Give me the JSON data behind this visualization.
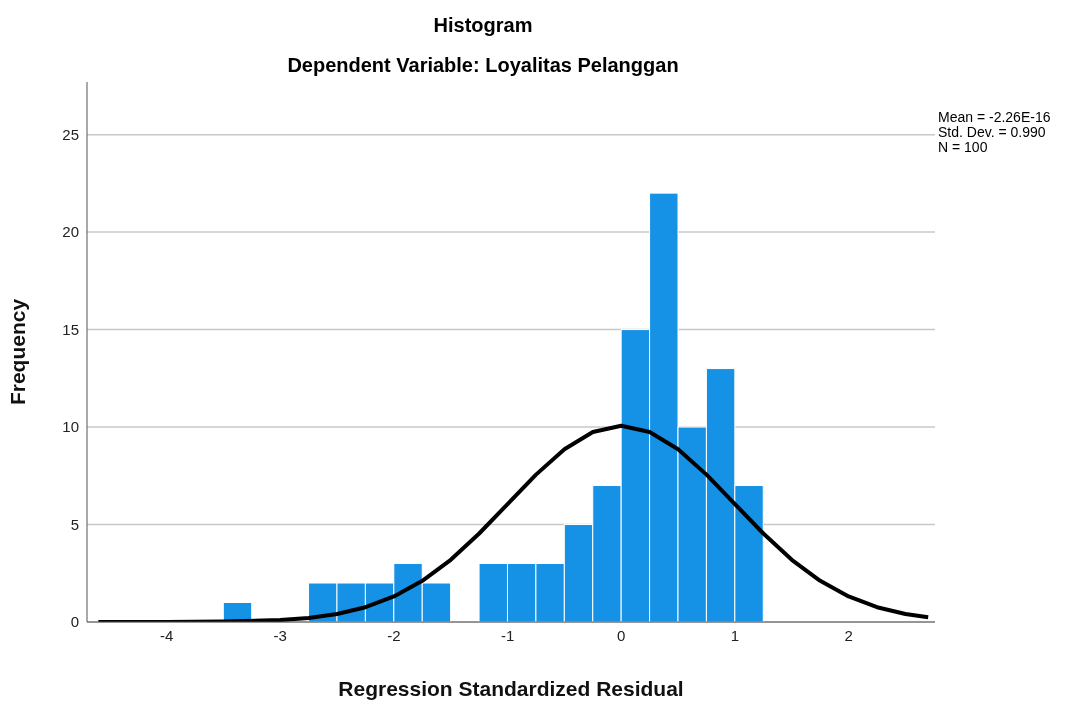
{
  "chart_data": {
    "type": "histogram",
    "title": "Histogram",
    "subtitle": "Dependent Variable: Loyalitas Pelanggan",
    "xlabel": "Regression Standardized Residual",
    "ylabel": "Frequency",
    "bins": [
      -3.5,
      -3.25,
      -3.0,
      -2.75,
      -2.5,
      -2.25,
      -2.0,
      -1.75,
      -1.5,
      -1.25,
      -1.0,
      -0.75,
      -0.5,
      -0.25,
      0.0,
      0.25,
      0.5,
      0.75,
      1.0,
      1.25
    ],
    "values": [
      1,
      0,
      0,
      2,
      2,
      2,
      3,
      2,
      0,
      3,
      3,
      3,
      5,
      7,
      15,
      22,
      10,
      13,
      7
    ],
    "color": "#1592e6",
    "series": [
      {
        "type": "line",
        "color": "#000000",
        "x": [
          -4.6,
          -4,
          -3.5,
          -3,
          -2.75,
          -2.5,
          -2.25,
          -2,
          -1.75,
          -1.5,
          -1.25,
          -1,
          -0.75,
          -0.5,
          -0.25,
          0,
          0.25,
          0.5,
          0.75,
          1,
          1.25,
          1.5,
          1.75,
          2,
          2.25,
          2.5,
          2.7
        ],
        "values": [
          0,
          0,
          0.02,
          0.1,
          0.21,
          0.41,
          0.76,
          1.31,
          2.11,
          3.19,
          4.54,
          6.05,
          7.56,
          8.86,
          9.75,
          10.07,
          9.75,
          8.86,
          7.56,
          6.05,
          4.54,
          3.19,
          2.11,
          1.31,
          0.76,
          0.41,
          0.24
        ]
      }
    ],
    "xlim": [
      -4.7,
      2.76
    ],
    "xticks": [
      -4,
      -3,
      -2,
      -1,
      0,
      1,
      2
    ],
    "ylim": [
      0,
      27.7
    ],
    "yticks": [
      0,
      5,
      10,
      15,
      20,
      25
    ],
    "grid": "y",
    "marker": "none",
    "line_style": "solid",
    "annotations": [
      "Mean = -2.26E-16",
      "Std. Dev. = 0.990",
      "N = 100"
    ]
  }
}
